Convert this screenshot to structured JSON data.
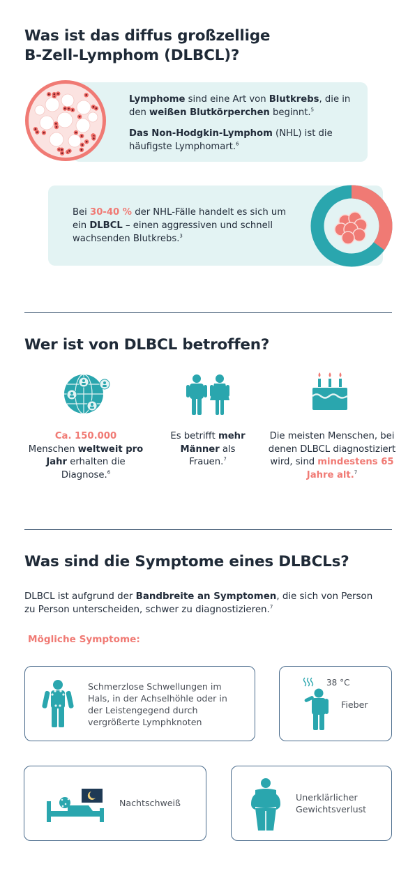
{
  "colors": {
    "teal": "#2aa6ae",
    "salmon": "#f07a74",
    "navy": "#1f2a37",
    "card_bg": "#e3f3f3"
  },
  "section1": {
    "title_line1": "Was ist das diffus großzellige",
    "title_line2": "B-Zell-Lymphom (DLBCL)?",
    "card1": {
      "p1_bold1": "Lymphome",
      "p1_t1": " sind eine Art von ",
      "p1_bold2": "Blutkrebs",
      "p1_t2": ", die in den ",
      "p1_bold3": "weißen Blutkörperchen",
      "p1_t3": " beginnt.",
      "p1_sup": "5",
      "p2_bold": "Das Non-Hodgkin-Lymphom",
      "p2_t1": " (NHL) ist die häufigste Lymphomart.",
      "p2_sup": "6"
    },
    "card2": {
      "t1": "Bei ",
      "pct": "30-40 %",
      "t2": " der NHL-Fälle handelt es sich um ein ",
      "bold": "DLBCL",
      "t3": " – einen aggressiven und schnell wachsenden Blutkrebs.",
      "sup": "3",
      "donut_share_percent": 35
    }
  },
  "section2": {
    "title": "Wer ist von DLBCL betroffen?",
    "col1": {
      "pink": "Ca. 150.000",
      "t1": "Menschen ",
      "bold": "weltweit pro Jahr",
      "t2": " erhalten die Diagnose.",
      "sup": "6",
      "icon": "globe-people-icon"
    },
    "col2": {
      "t1": "Es betrifft ",
      "bold": "mehr Männer",
      "t2": " als Frauen.",
      "sup": "7",
      "icon": "man-woman-icon"
    },
    "col3": {
      "t1": "Die meisten Menschen, bei denen DLBCL diagnostiziert wird, sind ",
      "pink": "mindestens 65 Jahre alt.",
      "sup": "7",
      "icon": "birthday-cake-icon"
    }
  },
  "section3": {
    "title": "Was sind die Symptome eines DLBCLs?",
    "intro_t1": "DLBCL ist aufgrund der ",
    "intro_bold": "Bandbreite an Symptomen",
    "intro_t2": ", die sich von Person zu Person unterscheiden, schwer zu diagnostizieren.",
    "intro_sup": "7",
    "subtitle": "Mögliche Symptome:",
    "symptoms": [
      {
        "text": "Schmerzlose Schwellungen im Hals, in der Achselhöhle oder in der Leistengegend durch vergrößerte Lymphknoten",
        "icon": "swollen-lymph-nodes-icon"
      },
      {
        "text": "Fieber",
        "temp": "38 °C",
        "icon": "fever-icon"
      },
      {
        "text": "Nachtschweiß",
        "icon": "night-sweat-icon"
      },
      {
        "text": "Unerklärlicher Gewichtsverlust",
        "icon": "weight-loss-icon"
      }
    ]
  }
}
